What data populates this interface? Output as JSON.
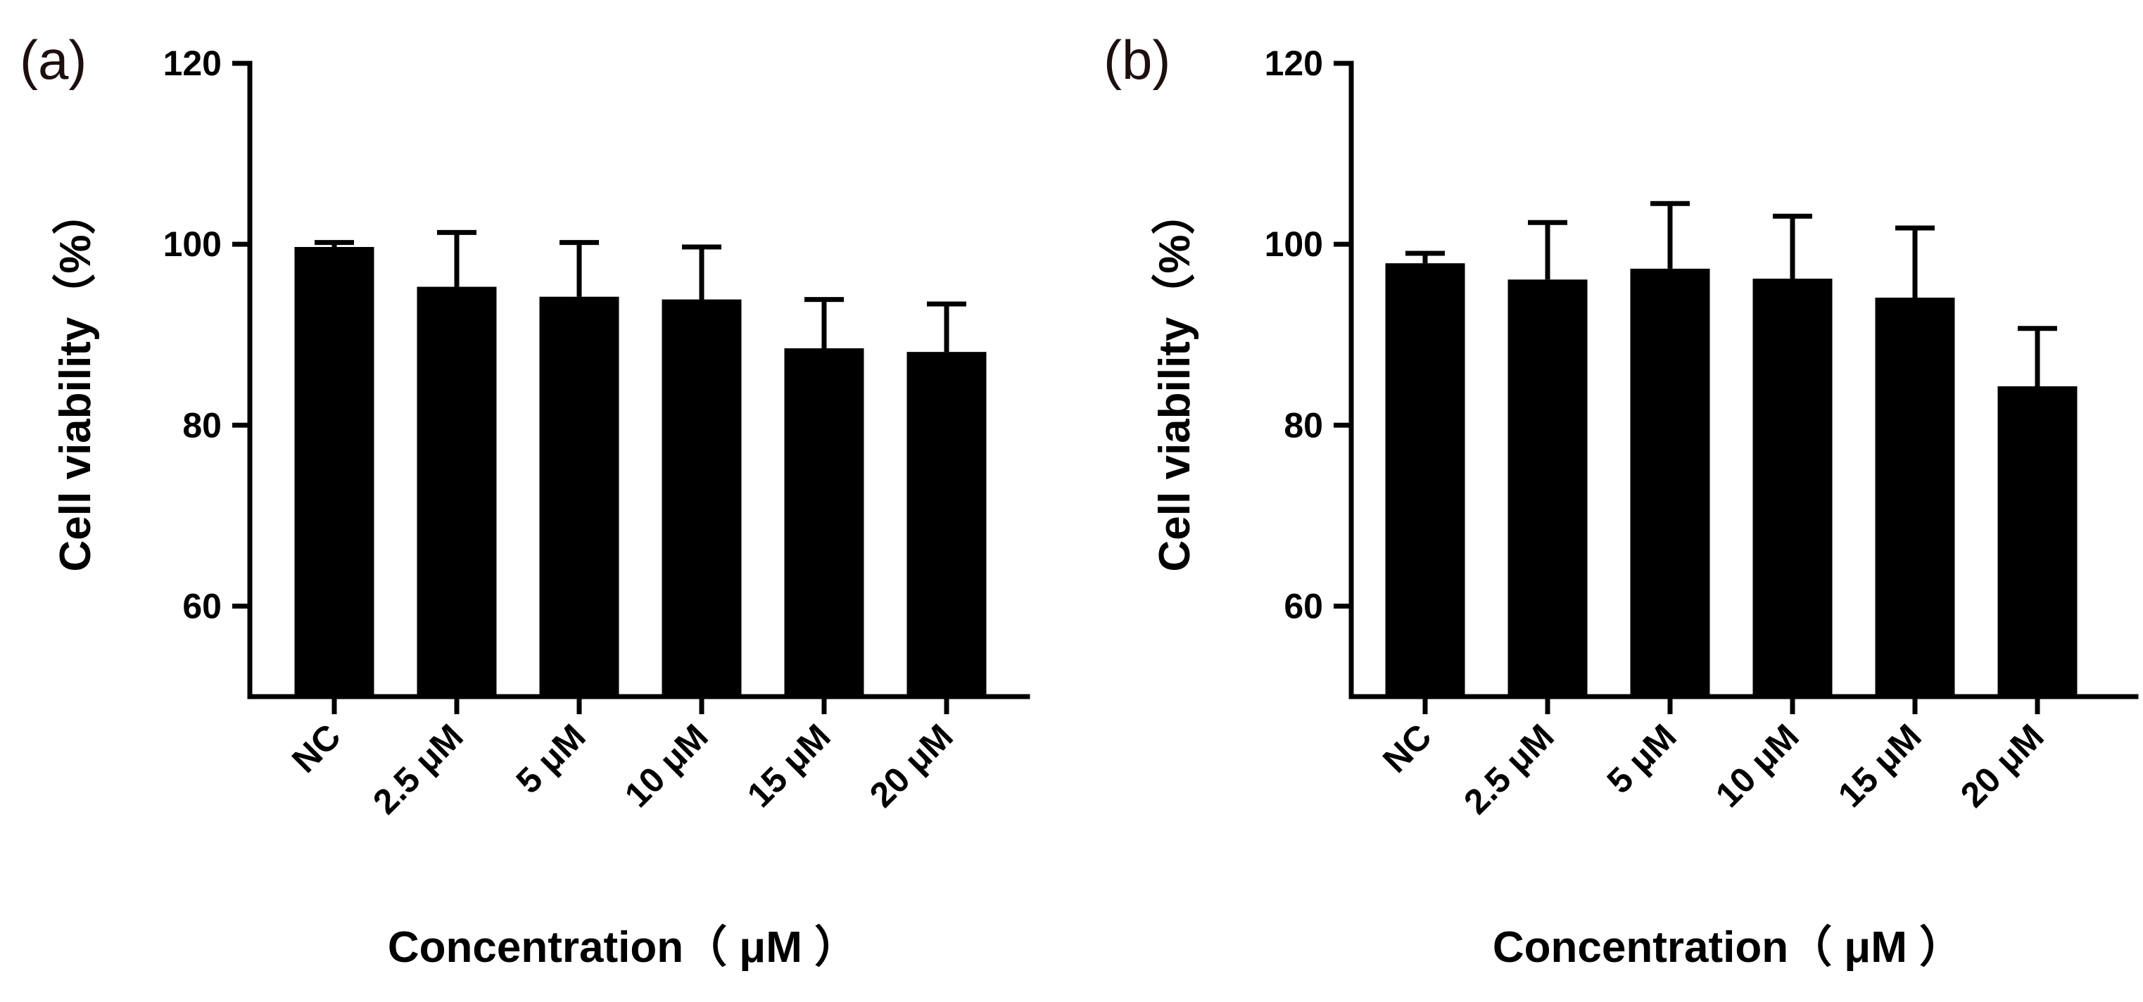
{
  "chart_data": [
    {
      "type": "bar",
      "panel_label": "(a)",
      "categories": [
        "NC",
        "2.5 μM",
        "5 μM",
        "10 μM",
        "15 μM",
        "20 μM"
      ],
      "values": [
        99.7,
        95.3,
        94.2,
        93.9,
        88.5,
        88.1
      ],
      "errors": [
        0.5,
        6.0,
        6.0,
        5.8,
        5.4,
        5.3
      ],
      "ylabel": "Cell viability（%）",
      "xlabel": "Concentration（ μM ）",
      "ylim": [
        50,
        120
      ],
      "yticks": [
        60,
        80,
        100,
        120
      ],
      "ytick_labels": [
        "60",
        "80",
        "100",
        "120"
      ],
      "color": "#000000"
    },
    {
      "type": "bar",
      "panel_label": "(b)",
      "categories": [
        "NC",
        "2.5 μM",
        "5 μM",
        "10 μM",
        "15 μM",
        "20 μM"
      ],
      "values": [
        97.9,
        96.1,
        97.3,
        96.2,
        94.1,
        84.3
      ],
      "errors": [
        1.1,
        6.3,
        7.2,
        6.9,
        7.7,
        6.4
      ],
      "ylabel": "Cell viability（%）",
      "xlabel": "Concentration（ μM ）",
      "ylim": [
        50,
        120
      ],
      "yticks": [
        60,
        80,
        100,
        120
      ],
      "ytick_labels": [
        "60",
        "80",
        "100",
        "120"
      ],
      "color": "#000000"
    }
  ]
}
